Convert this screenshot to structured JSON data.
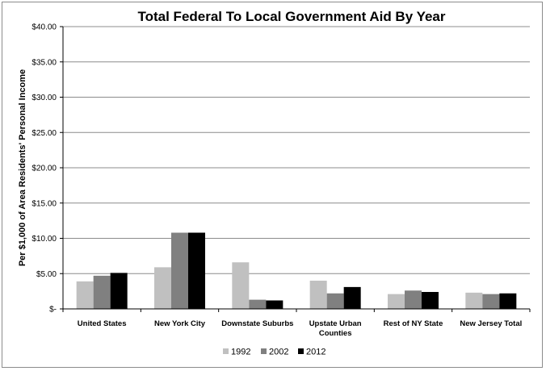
{
  "chart_data": {
    "type": "bar",
    "title": "Total Federal To Local Government Aid By Year",
    "xlabel": "",
    "ylabel": "Per $1,000 of Area Residents' Personal Income",
    "ylim": [
      0,
      40
    ],
    "yticks": [
      0,
      5,
      10,
      15,
      20,
      25,
      30,
      35,
      40
    ],
    "ytick_labels": [
      "$-",
      "$5.00",
      "$10.00",
      "$15.00",
      "$20.00",
      "$25.00",
      "$30.00",
      "$35.00",
      "$40.00"
    ],
    "grid": "horizontal",
    "legend_position": "bottom",
    "categories": [
      [
        "United States"
      ],
      [
        "New York City"
      ],
      [
        "Downstate Suburbs"
      ],
      [
        "Upstate Urban",
        "Counties"
      ],
      [
        "Rest of NY State"
      ],
      [
        "New Jersey Total"
      ]
    ],
    "series": [
      {
        "name": "1992",
        "color": "#c0c0c0",
        "values": [
          3.9,
          5.9,
          6.6,
          4.0,
          2.1,
          2.3
        ]
      },
      {
        "name": "2002",
        "color": "#808080",
        "values": [
          4.7,
          10.8,
          1.3,
          2.2,
          2.6,
          2.1
        ]
      },
      {
        "name": "2012",
        "color": "#000000",
        "values": [
          5.1,
          10.8,
          1.2,
          3.1,
          2.4,
          2.2
        ]
      }
    ]
  }
}
